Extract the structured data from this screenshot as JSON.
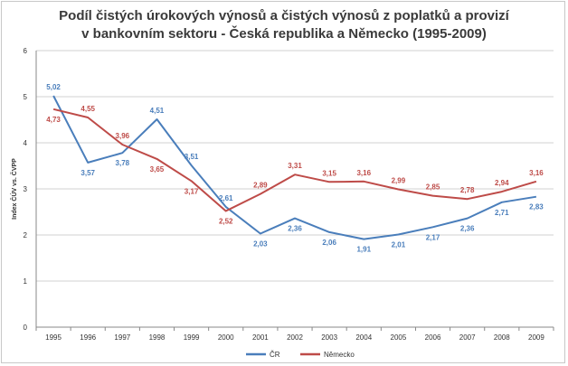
{
  "chart_data": {
    "type": "line",
    "title_line1": "Podíl čistých úrokových výnosů a čistých výnosů z poplatků a provizí",
    "title_line2": "v bankovním sektoru - Česká republika a Německo (1995-2009)",
    "ylabel": "Index ČÚV vs. ČVPP",
    "xlabel": "",
    "ylim": [
      0,
      6
    ],
    "yticks": [
      "0",
      "1",
      "2",
      "3",
      "4",
      "5",
      "6"
    ],
    "categories": [
      "1995",
      "1996",
      "1997",
      "1998",
      "1999",
      "2000",
      "2001",
      "2002",
      "2003",
      "2004",
      "2005",
      "2006",
      "2007",
      "2008",
      "2009"
    ],
    "grid": true,
    "legend_position": "bottom",
    "series": [
      {
        "name": "ČR",
        "color": "#4a7ebb",
        "values": [
          5.02,
          3.57,
          3.78,
          4.51,
          3.51,
          2.61,
          2.03,
          2.36,
          2.06,
          1.91,
          2.01,
          2.17,
          2.36,
          2.71,
          2.83
        ],
        "labels": [
          "5,02",
          "3,57",
          "3,78",
          "4,51",
          "3,51",
          "2,61",
          "2,03",
          "2,36",
          "2,06",
          "1,91",
          "2,01",
          "2,17",
          "2,36",
          "2,71",
          "2,83"
        ]
      },
      {
        "name": "Německo",
        "color": "#be4b48",
        "values": [
          4.73,
          4.55,
          3.96,
          3.65,
          3.17,
          2.52,
          2.89,
          3.31,
          3.15,
          3.16,
          2.99,
          2.85,
          2.78,
          2.94,
          3.16
        ],
        "labels": [
          "4,73",
          "4,55",
          "3,96",
          "3,65",
          "3,17",
          "2,52",
          "2,89",
          "3,31",
          "3,15",
          "3,16",
          "2,99",
          "2,85",
          "2,78",
          "2,94",
          "3,16"
        ]
      }
    ]
  }
}
